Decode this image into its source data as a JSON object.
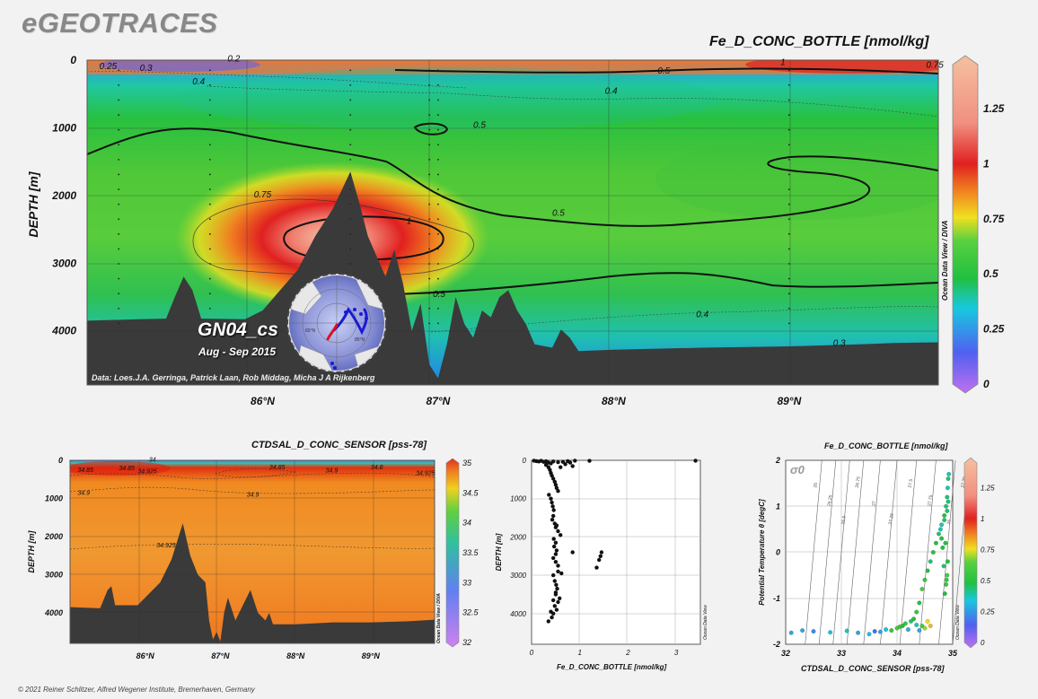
{
  "brand": "eGEOTRACES",
  "copyright": "© 2021 Reiner Schlitzer, Alfred Wegener Institute, Bremerhaven, Germany",
  "colors": {
    "scale_low": "#c070f0",
    "scale_blue": "#4a6df0",
    "scale_cyan": "#18c8e0",
    "scale_green": "#20c040",
    "scale_yellow": "#f0e020",
    "scale_orange": "#f08020",
    "scale_red": "#e02020",
    "scale_high": "#f5c0a0",
    "bathymetry": "#3a3a3a",
    "map_track": "#1a1ad0",
    "map_highlight": "#e01020"
  },
  "chart_data": [
    {
      "id": "main-section",
      "type": "heatmap",
      "title": "Fe_D_CONC_BOTTLE [nmol/kg]",
      "ylabel": "DEPTH [m]",
      "xlabel": "",
      "xlim": [
        85.0,
        89.85
      ],
      "ylim": [
        0,
        4800
      ],
      "xticks": [
        "86°N",
        "87°N",
        "88°N",
        "89°N"
      ],
      "xtick_values": [
        86,
        87,
        88,
        89
      ],
      "yticks": [
        "0",
        "1000",
        "2000",
        "3000",
        "4000"
      ],
      "ytick_values": [
        0,
        1000,
        2000,
        3000,
        4000
      ],
      "colorbar": {
        "ticks": [
          "0",
          "0.25",
          "0.5",
          "0.75",
          "1",
          "1.25"
        ],
        "tick_values": [
          0,
          0.25,
          0.5,
          0.75,
          1,
          1.25
        ],
        "range": [
          0,
          1.45
        ]
      },
      "contour_labels": [
        {
          "text": "0.25",
          "x": 85.07,
          "y": 130
        },
        {
          "text": "0.3",
          "x": 85.3,
          "y": 160
        },
        {
          "text": "0.2",
          "x": 85.8,
          "y": 20
        },
        {
          "text": "0.4",
          "x": 85.6,
          "y": 360
        },
        {
          "text": "0.5",
          "x": 87.2,
          "y": 1000
        },
        {
          "text": "0.5",
          "x": 88.25,
          "y": 200
        },
        {
          "text": "0.4",
          "x": 87.95,
          "y": 500
        },
        {
          "text": "1",
          "x": 88.95,
          "y": 70
        },
        {
          "text": "0.75",
          "x": 89.78,
          "y": 110
        },
        {
          "text": "0.75",
          "x": 85.95,
          "y": 2030
        },
        {
          "text": "1",
          "x": 86.82,
          "y": 2420
        },
        {
          "text": "0.5",
          "x": 87.65,
          "y": 2300
        },
        {
          "text": "0.5",
          "x": 86.97,
          "y": 3500
        },
        {
          "text": "0.4",
          "x": 88.47,
          "y": 3800
        },
        {
          "text": "0.3",
          "x": 89.25,
          "y": 4220
        }
      ],
      "inset_label": "GN04_cs",
      "inset_sublabel": "Aug - Sep 2015",
      "data_credit": "Data: Loes.J.A. Gerringa, Patrick Laan, Rob Middag, Micha J A Rijkenberg",
      "vertical_label": "Ocean Data View / DIVA"
    },
    {
      "id": "salinity-section",
      "type": "heatmap",
      "title": "CTDSAL_D_CONC_SENSOR [pss-78]",
      "ylabel": "DEPTH [m]",
      "xlim": [
        85.0,
        89.85
      ],
      "ylim": [
        0,
        4800
      ],
      "xticks": [
        "86°N",
        "87°N",
        "88°N",
        "89°N"
      ],
      "xtick_values": [
        86,
        87,
        88,
        89
      ],
      "yticks": [
        "0",
        "1000",
        "2000",
        "3000",
        "4000"
      ],
      "ytick_values": [
        0,
        1000,
        2000,
        3000,
        4000
      ],
      "colorbar": {
        "ticks": [
          "35",
          "34.5",
          "34",
          "33.5",
          "33",
          "32.5",
          "32"
        ],
        "tick_values": [
          35,
          34.5,
          34,
          33.5,
          33,
          32.5,
          32
        ],
        "range": [
          32,
          35
        ]
      },
      "contour_labels": [
        {
          "text": "34.85",
          "x": 85.1,
          "y": 300
        },
        {
          "text": "34.85",
          "x": 85.65,
          "y": 260
        },
        {
          "text": "34.925",
          "x": 85.9,
          "y": 340
        },
        {
          "text": "34.85",
          "x": 87.65,
          "y": 230
        },
        {
          "text": "34.9",
          "x": 88.4,
          "y": 320
        },
        {
          "text": "34.8",
          "x": 89.0,
          "y": 230
        },
        {
          "text": "34.925",
          "x": 89.6,
          "y": 390
        },
        {
          "text": "34",
          "x": 86.05,
          "y": 30
        },
        {
          "text": "34.9",
          "x": 85.1,
          "y": 900
        },
        {
          "text": "34.9",
          "x": 87.35,
          "y": 950
        },
        {
          "text": "34.925",
          "x": 86.15,
          "y": 2280
        }
      ],
      "vertical_label": "Ocean Data View / DIVA"
    },
    {
      "id": "fe-profile",
      "type": "scatter",
      "xlabel": "Fe_D_CONC_BOTTLE [nmol/kg]",
      "ylabel": "DEPTH [m]",
      "xlim": [
        0,
        3.5
      ],
      "ylim": [
        0,
        4800
      ],
      "xticks": [
        "0",
        "1",
        "2",
        "3"
      ],
      "xtick_values": [
        0,
        1,
        2,
        3
      ],
      "yticks": [
        "0",
        "1000",
        "2000",
        "3000",
        "4000"
      ],
      "ytick_values": [
        0,
        1000,
        2000,
        3000,
        4000
      ],
      "vertical_label": "Ocean Data View",
      "x": [
        0.05,
        0.1,
        0.15,
        0.2,
        0.25,
        0.3,
        0.35,
        0.4,
        0.45,
        0.55,
        0.65,
        0.75,
        0.9,
        1.2,
        3.4,
        0.3,
        0.35,
        0.38,
        0.4,
        0.42,
        0.45,
        0.48,
        0.5,
        0.52,
        0.55,
        0.6,
        0.7,
        0.8,
        0.85,
        0.36,
        0.4,
        0.42,
        0.44,
        0.46,
        0.45,
        0.43,
        0.48,
        0.5,
        0.55,
        0.6,
        0.46,
        0.5,
        0.52,
        0.47,
        0.52,
        0.5,
        0.45,
        0.5,
        0.55,
        0.62,
        0.55,
        0.45,
        0.48,
        0.51,
        0.53,
        0.5,
        0.85,
        1.35,
        1.4,
        1.43,
        1.45,
        0.58,
        0.55,
        0.48,
        0.52,
        0.45,
        0.4,
        0.45,
        0.5,
        0.42,
        0.35
      ],
      "y": [
        10,
        20,
        30,
        15,
        40,
        25,
        60,
        80,
        30,
        50,
        40,
        20,
        10,
        15,
        10,
        120,
        180,
        250,
        330,
        400,
        480,
        560,
        640,
        720,
        800,
        180,
        100,
        60,
        150,
        900,
        1000,
        1100,
        1200,
        1300,
        1450,
        1550,
        1650,
        1750,
        1850,
        1950,
        2050,
        2150,
        1700,
        2250,
        2350,
        2450,
        2550,
        2650,
        2750,
        2950,
        2900,
        3000,
        3150,
        3250,
        3350,
        3450,
        2400,
        2800,
        2600,
        2500,
        2400,
        3600,
        3700,
        3800,
        3900,
        3650,
        3950,
        4000,
        3500,
        4100,
        4200
      ]
    },
    {
      "id": "ts-diagram",
      "type": "scatter",
      "title": "Fe_D_CONC_BOTTLE [nmol/kg]",
      "xlabel": "CTDSAL_D_CONC_SENSOR [pss-78]",
      "ylabel": "Potential Temperature θ [degC]",
      "xlim": [
        32,
        35
      ],
      "ylim": [
        -2,
        2
      ],
      "xticks": [
        "32",
        "33",
        "34",
        "35"
      ],
      "xtick_values": [
        32,
        33,
        34,
        35
      ],
      "yticks": [
        "2",
        "1",
        "0",
        "-1",
        "-2"
      ],
      "ytick_values": [
        2,
        1,
        0,
        -1,
        -2
      ],
      "sigma_label": "σ0",
      "isopycnal_labels": [
        "26",
        "26.25",
        "26.5",
        "26.75",
        "27",
        "27.25",
        "27.5",
        "27.75",
        "26",
        "27.25"
      ],
      "colorbar": {
        "ticks": [
          "1.25",
          "1",
          "0.75",
          "0.5",
          "0.25",
          "0"
        ],
        "tick_values": [
          1.25,
          1,
          0.75,
          0.5,
          0.25,
          0
        ],
        "range": [
          0,
          1.45
        ]
      },
      "vertical_label": "Ocean Data View",
      "points_salinity": [
        32.1,
        32.3,
        32.5,
        32.8,
        33.1,
        33.3,
        33.5,
        33.7,
        33.9,
        34.0,
        34.1,
        34.15,
        34.2,
        34.25,
        34.3,
        34.35,
        34.4,
        34.45,
        34.5,
        34.55,
        34.6,
        34.65,
        34.7,
        34.75,
        34.8,
        34.85,
        34.88,
        34.9,
        34.91,
        34.92,
        34.93,
        34.9,
        34.88,
        34.86,
        34.84,
        34.82,
        34.8,
        34.78,
        34.9,
        34.92,
        34.91,
        34.89,
        34.87,
        34.85,
        34.6,
        34.55,
        34.5,
        34.45,
        34.4,
        33.6,
        33.8,
        34.05,
        34.35
      ],
      "points_theta": [
        -1.75,
        -1.7,
        -1.72,
        -1.74,
        -1.71,
        -1.75,
        -1.78,
        -1.73,
        -1.7,
        -1.65,
        -1.6,
        -1.55,
        -1.68,
        -1.5,
        -1.45,
        -1.3,
        -1.1,
        -0.8,
        -0.6,
        -0.4,
        -0.2,
        0.0,
        0.2,
        0.4,
        0.6,
        0.8,
        1.0,
        1.2,
        1.4,
        1.6,
        1.7,
        -0.5,
        -0.7,
        -0.9,
        -0.3,
        0.1,
        0.3,
        0.5,
        0.9,
        1.1,
        -0.2,
        -0.6,
        0.2,
        0.7,
        -1.6,
        -1.5,
        -1.65,
        -1.6,
        -1.7,
        -1.72,
        -1.68,
        -1.62,
        -1.58
      ],
      "points_fe": [
        0.3,
        0.3,
        0.25,
        0.35,
        0.4,
        0.3,
        0.35,
        0.3,
        0.55,
        0.6,
        0.5,
        0.55,
        0.3,
        0.45,
        0.5,
        0.55,
        0.5,
        0.6,
        0.55,
        0.5,
        0.45,
        0.5,
        0.5,
        0.45,
        0.4,
        0.5,
        0.45,
        0.45,
        0.4,
        0.45,
        0.4,
        0.6,
        0.55,
        0.5,
        0.45,
        0.5,
        0.5,
        0.4,
        0.45,
        0.45,
        0.5,
        0.55,
        0.5,
        0.45,
        0.8,
        0.75,
        0.7,
        0.6,
        0.3,
        0.2,
        0.35,
        0.55,
        0.4
      ]
    }
  ]
}
